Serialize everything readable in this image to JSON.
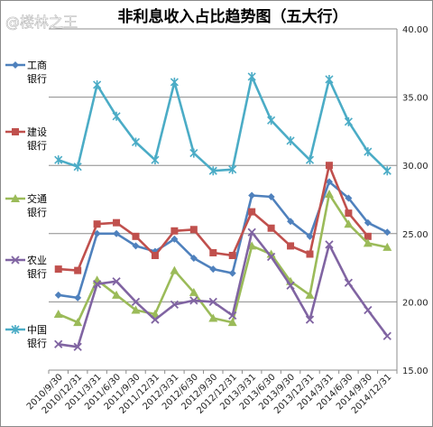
{
  "chart_data": {
    "type": "line",
    "title": "非利息收入占比趋势图（五大行）",
    "watermark": "@楼林之王",
    "xlabel": "",
    "ylabel": "",
    "ylim": [
      15,
      40
    ],
    "yticks": [
      "15.00",
      "20.00",
      "25.00",
      "30.00",
      "35.00",
      "40.00"
    ],
    "y_axis_position": "right",
    "grid": "horizontal",
    "legend_position": "left",
    "categories": [
      "2010/9/30",
      "2010/12/31",
      "2011/3/31",
      "2011/6/30",
      "2011/9/30",
      "2011/12/31",
      "2012/3/31",
      "2012/6/30",
      "2012/9/30",
      "2012/12/31",
      "2013/3/31",
      "2013/6/30",
      "2013/9/30",
      "2013/12/31",
      "2014/3/31",
      "2014/6/30",
      "2014/9/30",
      "2014/12/31"
    ],
    "series": [
      {
        "name": "工商银行",
        "legend_lines": [
          "工商",
          "银行"
        ],
        "color": "#4f81bd",
        "marker": "diamond",
        "values": [
          20.5,
          20.3,
          25.0,
          25.0,
          24.1,
          23.7,
          24.6,
          23.2,
          22.4,
          22.1,
          27.8,
          27.7,
          25.9,
          24.8,
          28.8,
          27.6,
          25.8,
          25.1
        ]
      },
      {
        "name": "建设银行",
        "legend_lines": [
          "建设",
          "银行"
        ],
        "color": "#c0504d",
        "marker": "square",
        "values": [
          22.4,
          22.3,
          25.7,
          25.8,
          24.8,
          23.4,
          25.2,
          25.3,
          23.6,
          23.4,
          26.6,
          25.4,
          24.1,
          23.5,
          30.0,
          26.5,
          24.8,
          null
        ]
      },
      {
        "name": "交通银行",
        "legend_lines": [
          "交通",
          "银行"
        ],
        "color": "#9bbb59",
        "marker": "triangle",
        "values": [
          19.1,
          18.5,
          21.6,
          20.5,
          19.4,
          19.1,
          22.3,
          20.7,
          18.8,
          18.5,
          24.1,
          23.5,
          21.5,
          20.5,
          27.9,
          25.7,
          24.3,
          24.0
        ]
      },
      {
        "name": "农业银行",
        "legend_lines": [
          "农业",
          "银行"
        ],
        "color": "#8064a2",
        "marker": "cross",
        "values": [
          16.9,
          16.7,
          21.3,
          21.5,
          20.0,
          18.7,
          19.8,
          20.1,
          20.0,
          19.0,
          25.1,
          23.3,
          21.2,
          18.7,
          24.2,
          21.4,
          19.4,
          17.5
        ]
      },
      {
        "name": "中国银行",
        "legend_lines": [
          "中国",
          "银行"
        ],
        "color": "#4bacc6",
        "marker": "star",
        "values": [
          30.4,
          29.9,
          35.9,
          33.6,
          31.7,
          30.4,
          36.1,
          30.9,
          29.6,
          29.7,
          36.5,
          33.3,
          31.8,
          30.4,
          36.3,
          33.2,
          31.0,
          29.6
        ]
      }
    ]
  }
}
